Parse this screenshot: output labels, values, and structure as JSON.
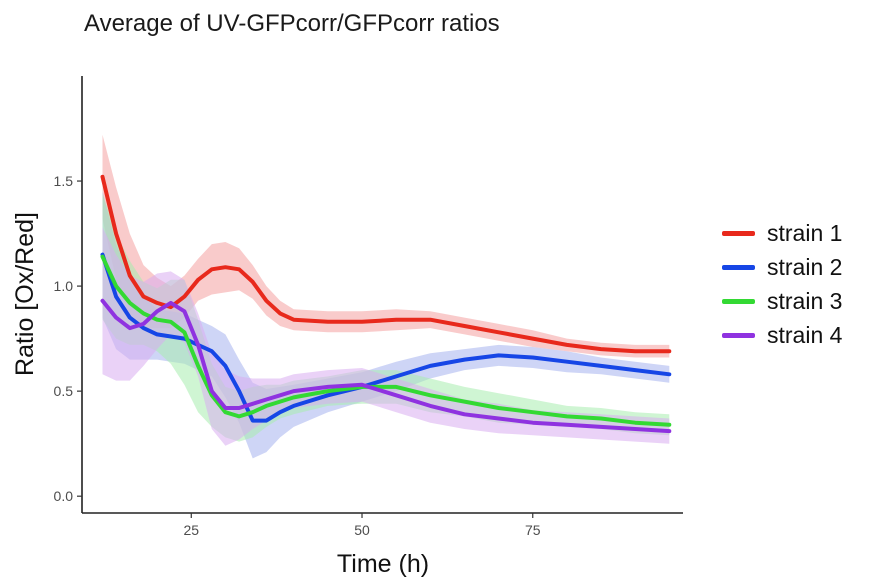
{
  "chart_data": {
    "type": "line",
    "title": "Average of UV-GFPcorr/GFPcorr ratios",
    "xlabel": "Time (h)",
    "ylabel": "Ratio [Ox/Red]",
    "xlim": [
      9,
      97
    ],
    "ylim": [
      -0.08,
      2.0
    ],
    "x_ticks": [
      25,
      50,
      75
    ],
    "y_ticks": [
      0.0,
      0.5,
      1.0,
      1.5
    ],
    "x_tick_labels": [
      "25",
      "50",
      "75"
    ],
    "y_tick_labels": [
      "0.0",
      "0.5",
      "1.0",
      "1.5"
    ],
    "grid": false,
    "legend_position": "right",
    "series": [
      {
        "name": "strain 1",
        "color": "#e8291c",
        "band_color": "#f4a0a0",
        "points": [
          [
            12,
            1.52,
            0.2
          ],
          [
            14,
            1.25,
            0.22
          ],
          [
            16,
            1.05,
            0.2
          ],
          [
            18,
            0.95,
            0.15
          ],
          [
            20,
            0.92,
            0.12
          ],
          [
            22,
            0.9,
            0.1
          ],
          [
            24,
            0.95,
            0.1
          ],
          [
            26,
            1.03,
            0.1
          ],
          [
            28,
            1.08,
            0.12
          ],
          [
            30,
            1.09,
            0.12
          ],
          [
            32,
            1.08,
            0.1
          ],
          [
            34,
            1.02,
            0.08
          ],
          [
            36,
            0.93,
            0.07
          ],
          [
            38,
            0.87,
            0.06
          ],
          [
            40,
            0.84,
            0.05
          ],
          [
            45,
            0.83,
            0.05
          ],
          [
            50,
            0.83,
            0.05
          ],
          [
            55,
            0.84,
            0.05
          ],
          [
            60,
            0.84,
            0.04
          ],
          [
            65,
            0.81,
            0.04
          ],
          [
            70,
            0.78,
            0.04
          ],
          [
            75,
            0.75,
            0.04
          ],
          [
            80,
            0.72,
            0.03
          ],
          [
            85,
            0.7,
            0.03
          ],
          [
            90,
            0.69,
            0.03
          ],
          [
            95,
            0.69,
            0.03
          ]
        ]
      },
      {
        "name": "strain 2",
        "color": "#1646e6",
        "band_color": "#a6b3ee",
        "points": [
          [
            12,
            1.15,
            0.3
          ],
          [
            14,
            0.95,
            0.25
          ],
          [
            16,
            0.85,
            0.2
          ],
          [
            18,
            0.8,
            0.15
          ],
          [
            20,
            0.77,
            0.12
          ],
          [
            22,
            0.76,
            0.12
          ],
          [
            24,
            0.75,
            0.12
          ],
          [
            26,
            0.72,
            0.12
          ],
          [
            28,
            0.69,
            0.12
          ],
          [
            30,
            0.62,
            0.15
          ],
          [
            32,
            0.5,
            0.15
          ],
          [
            34,
            0.36,
            0.18
          ],
          [
            36,
            0.36,
            0.15
          ],
          [
            38,
            0.4,
            0.12
          ],
          [
            40,
            0.43,
            0.1
          ],
          [
            45,
            0.48,
            0.08
          ],
          [
            50,
            0.52,
            0.07
          ],
          [
            55,
            0.57,
            0.07
          ],
          [
            60,
            0.62,
            0.06
          ],
          [
            65,
            0.65,
            0.05
          ],
          [
            70,
            0.67,
            0.05
          ],
          [
            75,
            0.66,
            0.05
          ],
          [
            80,
            0.64,
            0.05
          ],
          [
            85,
            0.62,
            0.04
          ],
          [
            90,
            0.6,
            0.04
          ],
          [
            95,
            0.58,
            0.04
          ]
        ]
      },
      {
        "name": "strain 3",
        "color": "#33d933",
        "band_color": "#a8ecae",
        "points": [
          [
            12,
            1.14,
            0.3
          ],
          [
            14,
            1.0,
            0.25
          ],
          [
            16,
            0.92,
            0.2
          ],
          [
            18,
            0.87,
            0.15
          ],
          [
            20,
            0.84,
            0.15
          ],
          [
            22,
            0.83,
            0.2
          ],
          [
            24,
            0.78,
            0.25
          ],
          [
            26,
            0.62,
            0.22
          ],
          [
            28,
            0.48,
            0.15
          ],
          [
            30,
            0.4,
            0.12
          ],
          [
            32,
            0.38,
            0.12
          ],
          [
            34,
            0.4,
            0.12
          ],
          [
            36,
            0.43,
            0.1
          ],
          [
            38,
            0.45,
            0.08
          ],
          [
            40,
            0.47,
            0.08
          ],
          [
            45,
            0.5,
            0.07
          ],
          [
            50,
            0.52,
            0.08
          ],
          [
            55,
            0.52,
            0.08
          ],
          [
            60,
            0.48,
            0.08
          ],
          [
            65,
            0.45,
            0.07
          ],
          [
            70,
            0.42,
            0.07
          ],
          [
            75,
            0.4,
            0.06
          ],
          [
            80,
            0.38,
            0.05
          ],
          [
            85,
            0.37,
            0.05
          ],
          [
            90,
            0.35,
            0.05
          ],
          [
            95,
            0.34,
            0.05
          ]
        ]
      },
      {
        "name": "strain 4",
        "color": "#8f32e0",
        "band_color": "#d8adf0",
        "points": [
          [
            12,
            0.93,
            0.35
          ],
          [
            14,
            0.85,
            0.3
          ],
          [
            16,
            0.8,
            0.25
          ],
          [
            18,
            0.82,
            0.2
          ],
          [
            20,
            0.88,
            0.18
          ],
          [
            22,
            0.92,
            0.15
          ],
          [
            24,
            0.88,
            0.15
          ],
          [
            26,
            0.72,
            0.15
          ],
          [
            28,
            0.5,
            0.18
          ],
          [
            30,
            0.42,
            0.18
          ],
          [
            32,
            0.42,
            0.15
          ],
          [
            34,
            0.44,
            0.12
          ],
          [
            36,
            0.46,
            0.1
          ],
          [
            38,
            0.48,
            0.08
          ],
          [
            40,
            0.5,
            0.08
          ],
          [
            45,
            0.52,
            0.08
          ],
          [
            50,
            0.53,
            0.08
          ],
          [
            55,
            0.48,
            0.08
          ],
          [
            60,
            0.43,
            0.08
          ],
          [
            65,
            0.39,
            0.07
          ],
          [
            70,
            0.37,
            0.07
          ],
          [
            75,
            0.35,
            0.06
          ],
          [
            80,
            0.34,
            0.06
          ],
          [
            85,
            0.33,
            0.06
          ],
          [
            90,
            0.32,
            0.06
          ],
          [
            95,
            0.31,
            0.06
          ]
        ]
      }
    ]
  }
}
